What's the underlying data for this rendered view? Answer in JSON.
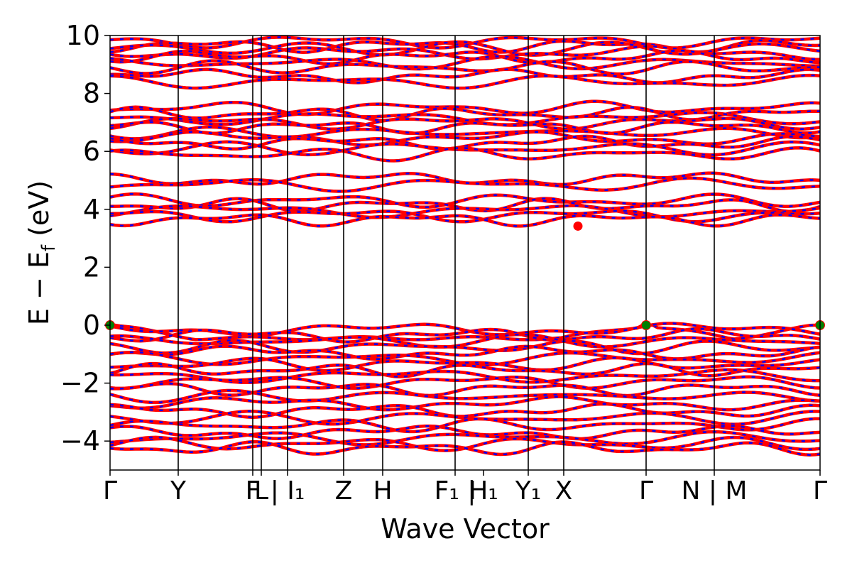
{
  "chart_data": {
    "type": "line",
    "title": "",
    "xlabel": "Wave Vector",
    "ylabel": "E − E_f (eV)",
    "ylabel_parts": {
      "main": "E  −  E",
      "sub": "f",
      "unit": " (eV)"
    },
    "ylim": [
      -5,
      10
    ],
    "yticks": [
      10,
      8,
      6,
      4,
      2,
      0,
      -2,
      -4
    ],
    "ytick_labels": [
      "10",
      "8",
      "6",
      "4",
      "2",
      "0",
      "−2",
      "−4"
    ],
    "grid": false,
    "legend": "none",
    "kpath": [
      {
        "label": "Γ",
        "pos": 0.0
      },
      {
        "label": "Y",
        "pos": 0.096
      },
      {
        "label": "F",
        "pos": 0.201
      },
      {
        "label": "L",
        "pos": 0.213
      },
      {
        "label": "| I₁",
        "pos": 0.25
      },
      {
        "label": "Z",
        "pos": 0.329
      },
      {
        "label": "H",
        "pos": 0.384
      },
      {
        "label": "F₁ |",
        "pos": 0.486
      },
      {
        "label": "H₁",
        "pos": 0.526
      },
      {
        "label": "Y₁",
        "pos": 0.589
      },
      {
        "label": "X",
        "pos": 0.639
      },
      {
        "label": "Γ",
        "pos": 0.755
      },
      {
        "label": "N | M",
        "pos": 0.851
      },
      {
        "label": "Γ",
        "pos": 1.0
      }
    ],
    "vlines": [
      0.096,
      0.201,
      0.213,
      0.25,
      0.329,
      0.384,
      0.486,
      0.589,
      0.639,
      0.755,
      0.851
    ],
    "series_colors": {
      "band_primary": "#ff0000",
      "band_overlay": "#0000ff"
    },
    "band_groups": {
      "conduction_upper": [
        9.8,
        9.65,
        9.55,
        9.4,
        9.25,
        9.05,
        8.9,
        8.6,
        8.4
      ],
      "conduction_mid": [
        7.5,
        7.3,
        7.15,
        7.0,
        6.85,
        6.65,
        6.45,
        6.3,
        6.1,
        5.9
      ],
      "conduction_low": [
        5.05,
        4.85,
        4.3,
        4.15,
        3.95,
        3.8,
        3.65
      ],
      "valence": [
        0.0,
        -0.15,
        -0.35,
        -0.55,
        -0.75,
        -0.95,
        -1.15,
        -1.35,
        -1.55,
        -1.75,
        -1.95,
        -2.2,
        -2.45,
        -2.7,
        -2.95,
        -3.2,
        -3.45,
        -3.7,
        -3.9,
        -4.1,
        -4.25
      ]
    },
    "vbm_points": [
      {
        "k": 0.0,
        "energy": 0.0
      },
      {
        "k": 0.755,
        "energy": 0.0
      },
      {
        "k": 1.0,
        "energy": 0.0
      }
    ],
    "cbm_point": {
      "k": 0.659,
      "energy": 3.42
    },
    "extremum_colors": {
      "vbm": "#008000",
      "cbm": "#ff0000"
    }
  }
}
